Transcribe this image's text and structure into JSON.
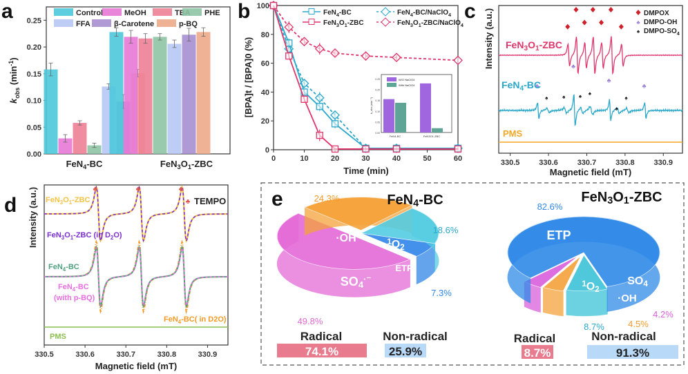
{
  "chart_data": [
    {
      "panel": "a",
      "type": "bar",
      "panel_label": "a",
      "ylabel": "k_obs (min⁻¹)",
      "ylabel_main": "k",
      "ylabel_sub": "obs",
      "ylabel_unit": " (min",
      "ylabel_sup": "-1",
      "ylabel_close": ")",
      "ylim": [
        0,
        0.275
      ],
      "yticks": [
        0.0,
        0.05,
        0.1,
        0.15,
        0.2,
        0.25
      ],
      "ytick_labels": [
        "0.00",
        "0.05",
        "0.10",
        "0.15",
        "0.20",
        "0.25"
      ],
      "categories": [
        "FeN4-BC",
        "FeN3O1-ZBC"
      ],
      "category_labels": [
        {
          "base": "FeN",
          "sub1": "4",
          "rest": "-BC"
        },
        {
          "base": "FeN",
          "sub1": "3",
          "mid": "O",
          "sub2": "1",
          "rest": "-ZBC"
        }
      ],
      "legend_position": "top",
      "series": [
        {
          "name": "Control",
          "color": "#4dc9dc",
          "values": [
            0.158,
            0.228
          ],
          "errors": [
            0.012,
            0.008
          ]
        },
        {
          "name": "MeOH",
          "color": "#e879d6",
          "values": [
            0.029,
            0.219
          ],
          "errors": [
            0.007,
            0.012
          ]
        },
        {
          "name": "TBA",
          "color": "#ee7f96",
          "values": [
            0.058,
            0.216
          ],
          "errors": [
            0.004,
            0.009
          ]
        },
        {
          "name": "PHE",
          "color": "#8fc4a4",
          "values": [
            0.016,
            0.219
          ],
          "errors": [
            0.004,
            0.006
          ]
        },
        {
          "name": "FFA",
          "color": "#b7c8f5",
          "values": [
            0.126,
            0.206
          ],
          "errors": [
            0.005,
            0.007
          ]
        },
        {
          "name": "β-Carotene",
          "color": "#a68fd1",
          "values": [
            0.098,
            0.223
          ],
          "errors": [
            0.013,
            0.012
          ]
        },
        {
          "name": "p-BQ",
          "color": "#eeaa88",
          "values": [
            0.151,
            0.228
          ],
          "errors": [
            0.007,
            0.008
          ]
        }
      ]
    },
    {
      "panel": "b",
      "type": "line",
      "panel_label": "b",
      "xlabel": "Time (min)",
      "ylabel": "[BPA]t / [BPA]0 (%)",
      "xlim": [
        0,
        60
      ],
      "ylim": [
        0,
        100
      ],
      "xticks": [
        0,
        10,
        20,
        30,
        40,
        50,
        60
      ],
      "yticks": [
        0,
        20,
        40,
        60,
        80,
        100
      ],
      "x": [
        0,
        5,
        10,
        15,
        20,
        30,
        40,
        60
      ],
      "legend_position": "top-right",
      "series": [
        {
          "name": "FeN4-BC",
          "label_base": "FeN",
          "label_sub": "4",
          "label_rest": "-BC",
          "color": "#2aa7c9",
          "marker": "square",
          "dash": false,
          "values": [
            100,
            74,
            40,
            30,
            18,
            1,
            1,
            1
          ],
          "errors": [
            0,
            3,
            2,
            3,
            3,
            1,
            1,
            1
          ]
        },
        {
          "name": "FeN3O1-ZBC",
          "label_base": "FeN",
          "label_sub": "3",
          "label_mid": "O",
          "label_sub2": "1",
          "label_rest": "-ZBC",
          "color": "#e0356b",
          "marker": "square",
          "dash": false,
          "values": [
            100,
            65,
            35,
            10,
            0.5,
            0.5,
            0.5,
            0.5
          ],
          "errors": [
            0,
            2,
            2,
            4,
            1,
            1,
            1,
            1
          ]
        },
        {
          "name": "FeN4-BC/NaClO4",
          "label_base": "FeN",
          "label_sub": "4",
          "label_rest": "-BC/NaClO",
          "label_sub3": "4",
          "color": "#2aa7c9",
          "marker": "diamond",
          "dash": true,
          "values": [
            100,
            70,
            46,
            36,
            24,
            1,
            1,
            1
          ],
          "errors": [
            0,
            3,
            3,
            4,
            3,
            1,
            1,
            1
          ]
        },
        {
          "name": "FeN3O1-ZBC/NaClO4",
          "label_base": "FeN",
          "label_sub": "3",
          "label_mid": "O",
          "label_sub2": "1",
          "label_rest": "-ZBC/NaClO",
          "label_sub3": "4",
          "color": "#e0356b",
          "marker": "diamond",
          "dash": true,
          "values": [
            100,
            85,
            75,
            70,
            67,
            65,
            64,
            62
          ],
          "errors": [
            0,
            4,
            2,
            4,
            2,
            3,
            2,
            1
          ]
        }
      ],
      "inset": {
        "type": "bar",
        "ylabel": "k_obs (min⁻¹)",
        "ylim": [
          0,
          0.25
        ],
        "yticks": [
          "0.00",
          "0.05",
          "0.10",
          "0.15",
          "0.20",
          "0.25"
        ],
        "categories": [
          "FeN4-BC",
          "FeN3O1-ZBC"
        ],
        "series": [
          {
            "name": "W/O NaClO4",
            "color": "#a066e0",
            "values": [
              0.155,
              0.228
            ]
          },
          {
            "name": "With NaClO4",
            "color": "#5fa596",
            "values": [
              0.138,
              0.02
            ]
          }
        ]
      }
    },
    {
      "panel": "c",
      "type": "line",
      "panel_label": "c",
      "xlabel": "Magnetic field (mT)",
      "ylabel": "Intensity (a.u.)",
      "xlim": [
        330.47,
        330.95
      ],
      "xticks": [
        "330.5",
        "330.6",
        "330.7",
        "330.8",
        "330.9"
      ],
      "tick_values": [
        330.5,
        330.6,
        330.7,
        330.8,
        330.9
      ],
      "legend_position": "top-right",
      "legend": [
        {
          "name": "DMPOX",
          "color": "#d0202a",
          "symbol": "diamond"
        },
        {
          "name": "DMPO-OH",
          "color": "#9b7fd6",
          "symbol": "club"
        },
        {
          "name": "DMPO-SO4",
          "color": "#111111",
          "symbol": "spade"
        }
      ],
      "series": [
        {
          "name": "FeN3O1-ZBC",
          "color": "#e0356b",
          "peaks_dmpox": [
            330.65,
            330.672,
            330.694,
            330.716,
            330.738,
            330.763,
            330.79
          ]
        },
        {
          "name": "FeN4-BC",
          "color": "#2aa7c9",
          "peaks_dmpo_oh": [
            330.57,
            330.665,
            330.758,
            330.85
          ],
          "peaks_dmpo_so4": [
            330.595,
            330.64,
            330.683,
            330.708,
            330.778,
            330.803
          ]
        },
        {
          "name": "PMS",
          "color": "#f5a623"
        }
      ]
    },
    {
      "panel": "d",
      "type": "line",
      "panel_label": "d",
      "xlabel": "Magnetic field (mT)",
      "ylabel": "Intensity (a.u.)",
      "xlim": [
        330.5,
        330.95
      ],
      "xticks": [
        "330.5",
        "330.6",
        "330.7",
        "330.8",
        "330.9"
      ],
      "tick_values": [
        330.5,
        330.6,
        330.7,
        330.8,
        330.9
      ],
      "annotation": "TEMPO",
      "tempo_peaks": [
        330.625,
        330.73,
        330.835
      ],
      "series": [
        {
          "name": "FeN3O1-ZBC",
          "color": "#f5c242",
          "label_lines": [
            "FeN3O1-ZBC"
          ]
        },
        {
          "name": "FeN3O1-ZBC (in D2O)",
          "color": "#7b2fd1",
          "dash": true
        },
        {
          "name": "FeN4-BC",
          "color": "#4fa07e"
        },
        {
          "name": "FeN4-BC (with p-BQ)",
          "color": "#e86fe0",
          "dash": true,
          "label_lines": [
            "FeN4-BC",
            "(with p-BQ)"
          ]
        },
        {
          "name": "FeN4-BC( in D2O)",
          "color": "#f39a26",
          "dash": true
        },
        {
          "name": "PMS",
          "color": "#8cbf4f"
        }
      ]
    },
    {
      "panel": "e",
      "type": "pie",
      "panel_label": "e",
      "pies": [
        {
          "title": "FeN4-BC",
          "slices": [
            {
              "label": "SO4·⁻",
              "value": 49.8,
              "color": "#e56ad8",
              "pct": "49.8%",
              "pct_color": "#e06ad0"
            },
            {
              "label": "·OH",
              "value": 24.3,
              "color": "#f5a23a",
              "pct": "24.3%",
              "pct_color": "#f59a2a"
            },
            {
              "label": "¹O2",
              "value": 18.6,
              "color": "#55cde2",
              "pct": "18.6%",
              "pct_color": "#2aa7c9"
            },
            {
              "label": "ETP",
              "value": 7.3,
              "color": "#2f86e8",
              "pct": "7.3%",
              "pct_color": "#2f86e8"
            }
          ],
          "radical_label": "Radical",
          "radical_value": "74.1%",
          "nonradical_label": "Non-radical",
          "nonradical_value": "25.9%"
        },
        {
          "title": "FeN3O1-ZBC",
          "slices": [
            {
              "label": "ETP",
              "value": 82.6,
              "color": "#2f8ae8",
              "pct": "82.6%",
              "pct_color": "#2f86e8"
            },
            {
              "label": "¹O2",
              "value": 8.7,
              "color": "#3cc3d8",
              "pct": "8.7%",
              "pct_color": "#2aa7c9"
            },
            {
              "label": "·OH",
              "value": 4.5,
              "color": "#f5a23a",
              "pct": "4.5%",
              "pct_color": "#f59a2a"
            },
            {
              "label": "SO4",
              "value": 4.2,
              "color": "#d95fdc",
              "pct": "4.2%",
              "pct_color": "#d95fdc"
            }
          ],
          "radical_label": "Radical",
          "radical_value": "8.7%",
          "nonradical_label": "Non-radical",
          "nonradical_value": "91.3%"
        }
      ],
      "colors": {
        "radical_bar": "#e87b8e",
        "nonradical_bar": "#b9d9f8"
      }
    }
  ]
}
